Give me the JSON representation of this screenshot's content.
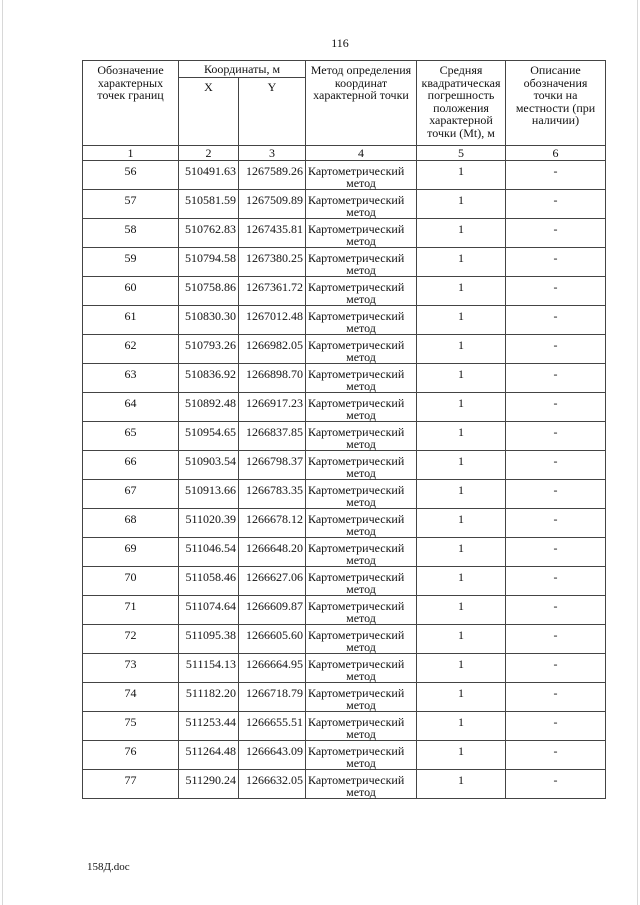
{
  "page_number": "116",
  "footer": "158Д.doc",
  "table": {
    "headers": {
      "point": "Обозначение характерных точек границ",
      "coords": "Координаты, м",
      "x": "X",
      "y": "Y",
      "method": "Метод определения координат характерной точки",
      "error": "Средняя квадратическая погрешность положения характерной точки (Mt), м",
      "description": "Описание обозначения точки на местности (при наличии)"
    },
    "column_numbers": [
      "1",
      "2",
      "3",
      "4",
      "5",
      "6"
    ],
    "rows": [
      {
        "point": "56",
        "x": "510491.63",
        "y": "1267589.26",
        "method_1": "Картометрический",
        "method_2": "метод",
        "mt": "1",
        "desc": "-"
      },
      {
        "point": "57",
        "x": "510581.59",
        "y": "1267509.89",
        "method_1": "Картометрический",
        "method_2": "метод",
        "mt": "1",
        "desc": "-"
      },
      {
        "point": "58",
        "x": "510762.83",
        "y": "1267435.81",
        "method_1": "Картометрический",
        "method_2": "метод",
        "mt": "1",
        "desc": "-"
      },
      {
        "point": "59",
        "x": "510794.58",
        "y": "1267380.25",
        "method_1": "Картометрический",
        "method_2": "метод",
        "mt": "1",
        "desc": "-"
      },
      {
        "point": "60",
        "x": "510758.86",
        "y": "1267361.72",
        "method_1": "Картометрический",
        "method_2": "метод",
        "mt": "1",
        "desc": "-"
      },
      {
        "point": "61",
        "x": "510830.30",
        "y": "1267012.48",
        "method_1": "Картометрический",
        "method_2": "метод",
        "mt": "1",
        "desc": "-"
      },
      {
        "point": "62",
        "x": "510793.26",
        "y": "1266982.05",
        "method_1": "Картометрический",
        "method_2": "метод",
        "mt": "1",
        "desc": "-"
      },
      {
        "point": "63",
        "x": "510836.92",
        "y": "1266898.70",
        "method_1": "Картометрический",
        "method_2": "метод",
        "mt": "1",
        "desc": "-"
      },
      {
        "point": "64",
        "x": "510892.48",
        "y": "1266917.23",
        "method_1": "Картометрический",
        "method_2": "метод",
        "mt": "1",
        "desc": "-"
      },
      {
        "point": "65",
        "x": "510954.65",
        "y": "1266837.85",
        "method_1": "Картометрический",
        "method_2": "метод",
        "mt": "1",
        "desc": "-"
      },
      {
        "point": "66",
        "x": "510903.54",
        "y": "1266798.37",
        "method_1": "Картометрический",
        "method_2": "метод",
        "mt": "1",
        "desc": "-"
      },
      {
        "point": "67",
        "x": "510913.66",
        "y": "1266783.35",
        "method_1": "Картометрический",
        "method_2": "метод",
        "mt": "1",
        "desc": "-"
      },
      {
        "point": "68",
        "x": "511020.39",
        "y": "1266678.12",
        "method_1": "Картометрический",
        "method_2": "метод",
        "mt": "1",
        "desc": "-"
      },
      {
        "point": "69",
        "x": "511046.54",
        "y": "1266648.20",
        "method_1": "Картометрический",
        "method_2": "метод",
        "mt": "1",
        "desc": "-"
      },
      {
        "point": "70",
        "x": "511058.46",
        "y": "1266627.06",
        "method_1": "Картометрический",
        "method_2": "метод",
        "mt": "1",
        "desc": "-"
      },
      {
        "point": "71",
        "x": "511074.64",
        "y": "1266609.87",
        "method_1": "Картометрический",
        "method_2": "метод",
        "mt": "1",
        "desc": "-"
      },
      {
        "point": "72",
        "x": "511095.38",
        "y": "1266605.60",
        "method_1": "Картометрический",
        "method_2": "метод",
        "mt": "1",
        "desc": "-"
      },
      {
        "point": "73",
        "x": "511154.13",
        "y": "1266664.95",
        "method_1": "Картометрический",
        "method_2": "метод",
        "mt": "1",
        "desc": "-"
      },
      {
        "point": "74",
        "x": "511182.20",
        "y": "1266718.79",
        "method_1": "Картометрический",
        "method_2": "метод",
        "mt": "1",
        "desc": "-"
      },
      {
        "point": "75",
        "x": "511253.44",
        "y": "1266655.51",
        "method_1": "Картометрический",
        "method_2": "метод",
        "mt": "1",
        "desc": "-"
      },
      {
        "point": "76",
        "x": "511264.48",
        "y": "1266643.09",
        "method_1": "Картометрический",
        "method_2": "метод",
        "mt": "1",
        "desc": "-"
      },
      {
        "point": "77",
        "x": "511290.24",
        "y": "1266632.05",
        "method_1": "Картометрический",
        "method_2": "метод",
        "mt": "1",
        "desc": "-"
      }
    ]
  }
}
